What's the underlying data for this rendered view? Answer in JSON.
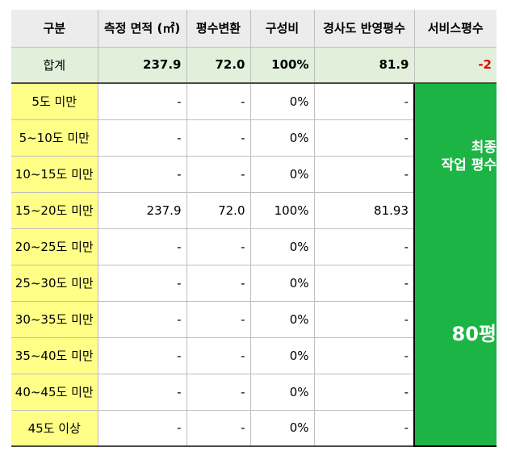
{
  "headers": [
    "구분",
    "측정 면적 (㎡)",
    "평수변환",
    "구성비",
    "경사도 반영평수",
    "서비스평수"
  ],
  "total": {
    "label": "합계",
    "area": "237.9",
    "pyeong": "72.0",
    "ratio": "100%",
    "slope": "81.9",
    "service": "-2"
  },
  "rows": [
    {
      "cat": "5도 미만",
      "area": "-",
      "pyeong": "-",
      "ratio": "0%",
      "slope": "-"
    },
    {
      "cat": "5~10도 미만",
      "area": "-",
      "pyeong": "-",
      "ratio": "0%",
      "slope": "-"
    },
    {
      "cat": "10~15도 미만",
      "area": "-",
      "pyeong": "-",
      "ratio": "0%",
      "slope": "-"
    },
    {
      "cat": "15~20도 미만",
      "area": "237.9",
      "pyeong": "72.0",
      "ratio": "100%",
      "slope": "81.93"
    },
    {
      "cat": "20~25도 미만",
      "area": "-",
      "pyeong": "-",
      "ratio": "0%",
      "slope": "-"
    },
    {
      "cat": "25~30도 미만",
      "area": "-",
      "pyeong": "-",
      "ratio": "0%",
      "slope": "-"
    },
    {
      "cat": "30~35도 미만",
      "area": "-",
      "pyeong": "-",
      "ratio": "0%",
      "slope": "-"
    },
    {
      "cat": "35~40도 미만",
      "area": "-",
      "pyeong": "-",
      "ratio": "0%",
      "slope": "-"
    },
    {
      "cat": "40~45도 미만",
      "area": "-",
      "pyeong": "-",
      "ratio": "0%",
      "slope": "-"
    },
    {
      "cat": "45도 이상",
      "area": "-",
      "pyeong": "-",
      "ratio": "0%",
      "slope": "-"
    }
  ],
  "final": {
    "label_line1": "최종",
    "label_line2": "작업 평수",
    "value": "80평"
  },
  "colors": {
    "header_bg": "#ececec",
    "total_bg": "#e2efda",
    "category_bg": "#ffff88",
    "final_bg": "#1db446",
    "negative": "#e00000"
  }
}
